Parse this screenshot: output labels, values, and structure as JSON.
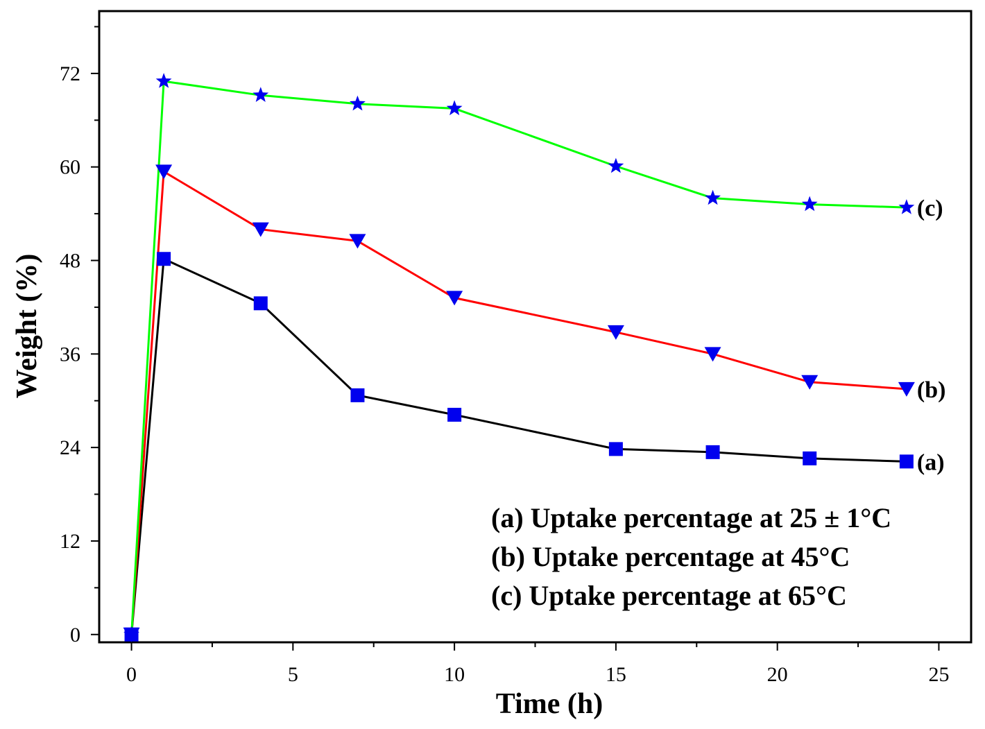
{
  "chart_data": {
    "type": "line",
    "title": "",
    "xlabel": "Time (h)",
    "ylabel": "Weight  (%)",
    "xlim": [
      -1,
      26
    ],
    "ylim": [
      -1,
      80
    ],
    "xticks": [
      0,
      5,
      10,
      15,
      20,
      25
    ],
    "yticks": [
      0,
      12,
      24,
      36,
      48,
      60,
      72
    ],
    "grid": false,
    "legend_position": "bottom-right",
    "legend": [
      "(a) Uptake percentage at 25  ± 1°C",
      "(b) Uptake percentage at 45°C",
      "(c) Uptake percentage at 65°C"
    ],
    "series": [
      {
        "name": "(a)",
        "end_label": "(a)",
        "line_color": "#000000",
        "marker_color": "#0000ee",
        "marker": "square",
        "x": [
          0,
          1,
          4,
          7,
          10,
          15,
          18,
          21,
          24
        ],
        "values": [
          0,
          48.2,
          42.5,
          30.7,
          28.2,
          23.8,
          23.4,
          22.6,
          22.2
        ]
      },
      {
        "name": "(b)",
        "end_label": "(b)",
        "line_color": "#ff0000",
        "marker_color": "#0000ee",
        "marker": "triangle-down",
        "x": [
          0,
          1,
          4,
          7,
          10,
          15,
          18,
          21,
          24
        ],
        "values": [
          0,
          59.4,
          52.0,
          50.5,
          43.2,
          38.8,
          36.0,
          32.4,
          31.5
        ]
      },
      {
        "name": "(c)",
        "end_label": "(c)",
        "line_color": "#00ff00",
        "marker_color": "#0000ee",
        "marker": "star",
        "x": [
          0,
          1,
          4,
          7,
          10,
          15,
          18,
          21,
          24
        ],
        "values": [
          0,
          71.0,
          69.2,
          68.1,
          67.5,
          60.1,
          56.0,
          55.2,
          54.8
        ]
      }
    ]
  }
}
